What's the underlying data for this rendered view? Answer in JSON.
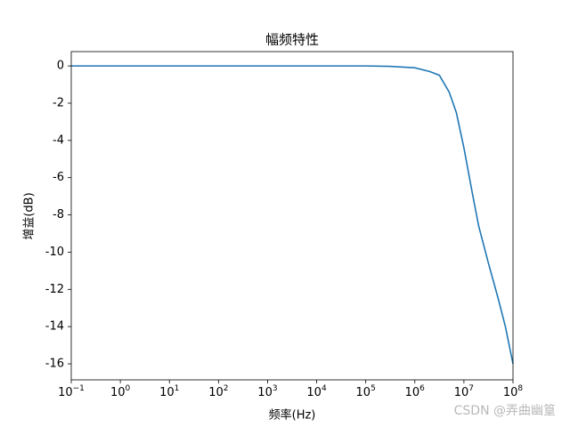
{
  "chart_data": {
    "type": "line",
    "title": "幅频特性",
    "x_label": "频率(Hz)",
    "y_label": "增益(dB)",
    "x": [
      0.1,
      1,
      10,
      100,
      1000,
      10000,
      100000,
      300000,
      1000000,
      2000000,
      3160000,
      5000000,
      7000000,
      10000000,
      15000000,
      20000000,
      31600000,
      50000000,
      70000000,
      100000000
    ],
    "series": [
      {
        "name": "增益",
        "color": "#1f77b4",
        "values": [
          0,
          0,
          0,
          0,
          0,
          0,
          0,
          -0.02,
          -0.1,
          -0.3,
          -0.5,
          -1.4,
          -2.5,
          -4.4,
          -6.9,
          -8.6,
          -10.6,
          -12.5,
          -14,
          -16
        ]
      }
    ],
    "x_log": true,
    "xlim": [
      0.1,
      100000000
    ],
    "xticks": [
      {
        "value": 0.1,
        "label": "10−1"
      },
      {
        "value": 1,
        "label": "100"
      },
      {
        "value": 10,
        "label": "101"
      },
      {
        "value": 100,
        "label": "102"
      },
      {
        "value": 1000,
        "label": "103"
      },
      {
        "value": 10000,
        "label": "104"
      },
      {
        "value": 100000,
        "label": "105"
      },
      {
        "value": 1000000,
        "label": "106"
      },
      {
        "value": 10000000,
        "label": "107"
      },
      {
        "value": 100000000,
        "label": "108"
      }
    ],
    "ylim": [
      -16.86,
      0.77
    ],
    "yticks": [
      0,
      -2,
      -4,
      -6,
      -8,
      -10,
      -12,
      -14,
      -16
    ],
    "grid": false,
    "watermark": "CSDN @弄曲幽篁"
  }
}
